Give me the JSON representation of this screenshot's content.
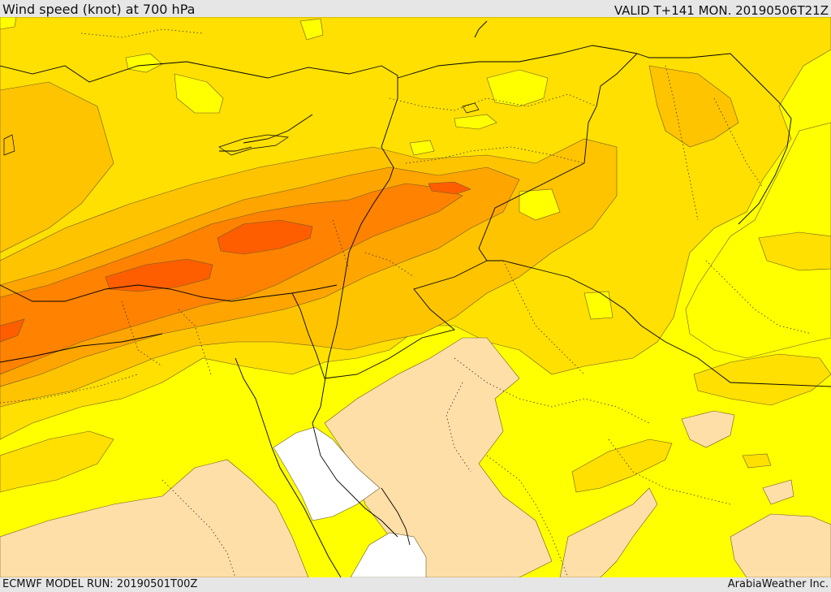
{
  "header": {
    "title": "Wind speed (knot) at 700 hPa",
    "valid": "VALID T+141 MON. 20190506T21Z"
  },
  "footer": {
    "model_run": "ECMWF MODEL RUN: 20190501T00Z",
    "brand": "ArabiaWeather Inc."
  },
  "palette": {
    "sea_none": "#ffffff",
    "band_lowest": "#ffdfa8",
    "band_low": "#ffff00",
    "band_mid_low": "#ffe000",
    "band_mid": "#ffc400",
    "band_mid_high": "#ffa500",
    "band_high": "#ff8200",
    "band_highest": "#ff5e00",
    "border_color": "#000000",
    "contour_color": "#6b5a2a"
  }
}
